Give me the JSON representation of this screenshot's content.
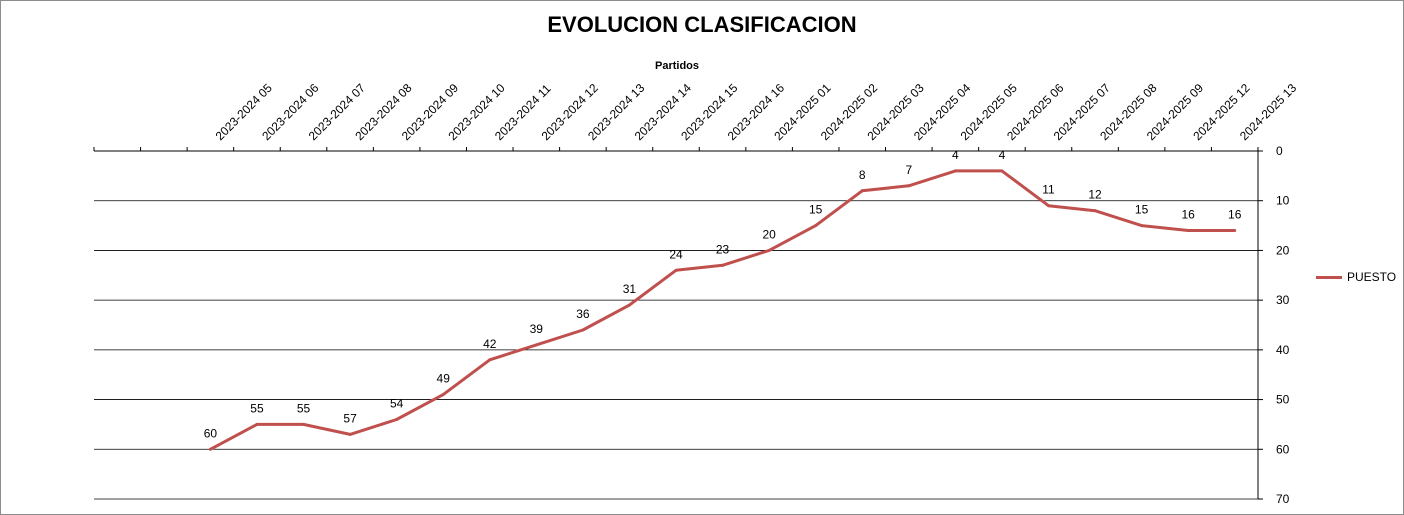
{
  "chart_data": {
    "type": "line",
    "title": "EVOLUCION CLASIFICACION",
    "xlabel": "Partidos",
    "ylabel": "",
    "ylim": [
      0,
      70
    ],
    "y_inverted": true,
    "y_ticks": [
      0,
      10,
      20,
      30,
      40,
      50,
      60,
      70
    ],
    "grid": "horizontal",
    "legend_position": "right",
    "categories": [
      "",
      "",
      "2023-2024 05",
      "2023-2024 06",
      "2023-2024 07",
      "2023-2024 08",
      "2023-2024 09",
      "2023-2024 10",
      "2023-2024 11",
      "2023-2024 12",
      "2023-2024 13",
      "2023-2024 14",
      "2023-2024 15",
      "2023-2024 16",
      "2024-2025 01",
      "2024-2025 02",
      "2024-2025 03",
      "2024-2025 04",
      "2024-2025 05",
      "2024-2025 06",
      "2024-2025 07",
      "2024-2025 08",
      "2024-2025 09",
      "2024-2025 12",
      "2024-2025 13"
    ],
    "series": [
      {
        "name": "PUESTO",
        "color": "#c0504d",
        "values": [
          null,
          null,
          60,
          55,
          55,
          57,
          54,
          49,
          42,
          39,
          36,
          31,
          24,
          23,
          20,
          15,
          8,
          7,
          4,
          4,
          11,
          12,
          15,
          16,
          16
        ]
      }
    ]
  }
}
